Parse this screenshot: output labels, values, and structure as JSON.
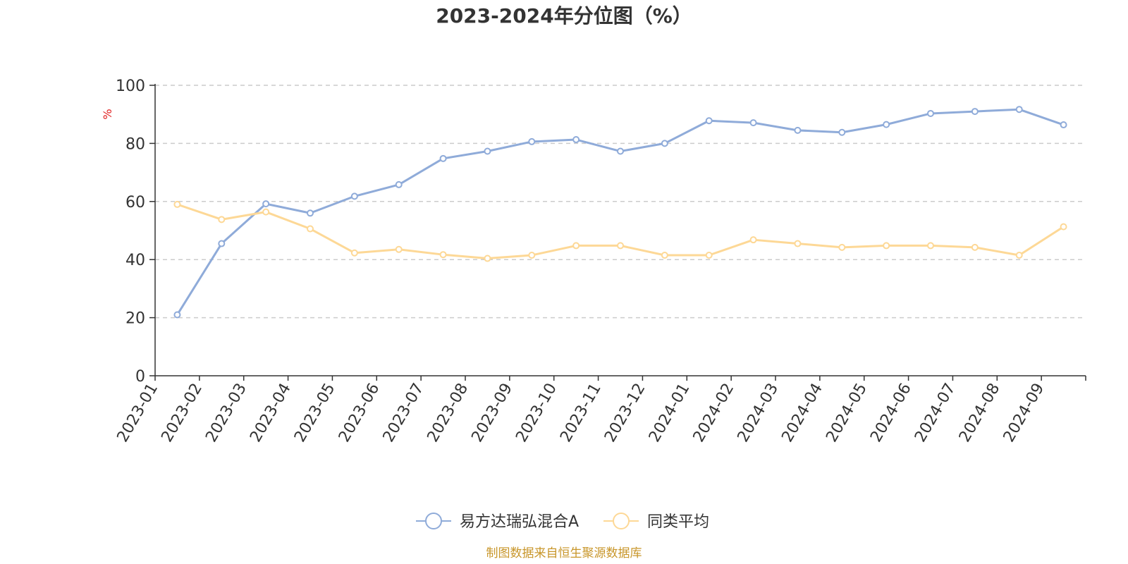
{
  "chart_data": {
    "type": "line",
    "title": "2023-2024年分位图（%）",
    "ylabel": "%",
    "xlabel": "",
    "ylim": [
      0,
      100
    ],
    "yticks": [
      "0",
      "20",
      "40",
      "60",
      "80",
      "100"
    ],
    "grid": true,
    "legend_position": "bottom",
    "categories": [
      "2023-01",
      "2023-02",
      "2023-03",
      "2023-04",
      "2023-05",
      "2023-06",
      "2023-07",
      "2023-08",
      "2023-09",
      "2023-10",
      "2023-11",
      "2023-12",
      "2024-01",
      "2024-02",
      "2024-03",
      "2024-04",
      "2024-05",
      "2024-06",
      "2024-07",
      "2024-08",
      "2024-09"
    ],
    "series": [
      {
        "name": "易方达瑞弘混合A",
        "color": "#8fabd9",
        "values": [
          21,
          45.5,
          59.2,
          56,
          61.8,
          65.8,
          74.8,
          77.3,
          80.6,
          81.3,
          77.3,
          80,
          87.8,
          87.1,
          84.5,
          83.8,
          86.5,
          90.3,
          91,
          91.7,
          86.4
        ]
      },
      {
        "name": "同类平均",
        "color": "#fdd896",
        "values": [
          59,
          53.8,
          56.4,
          50.6,
          42.3,
          43.5,
          41.7,
          40.4,
          41.5,
          44.8,
          44.8,
          41.5,
          41.5,
          46.8,
          45.5,
          44.2,
          44.8,
          44.8,
          44.2,
          41.5,
          51.3
        ]
      }
    ]
  },
  "source_text": "制图数据来自恒生聚源数据库"
}
